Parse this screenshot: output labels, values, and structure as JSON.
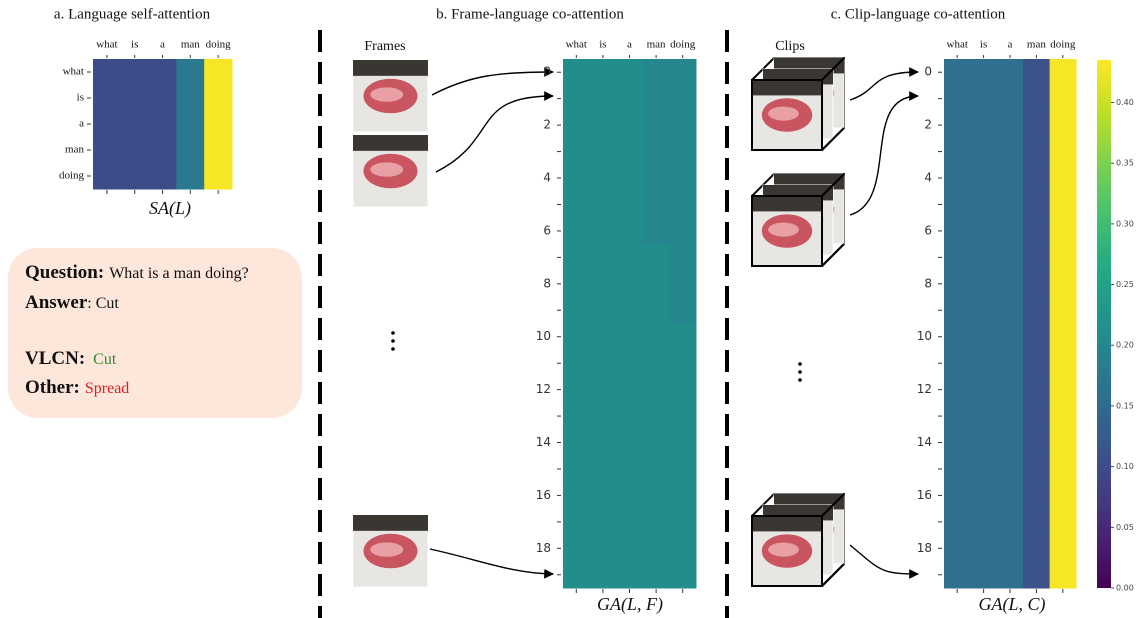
{
  "chart_data": [
    {
      "type": "heatmap",
      "title": "a. Language self-attention",
      "xlabel": "SA(L)",
      "columns": [
        "what",
        "is",
        "a",
        "man",
        "doing"
      ],
      "rows": [
        "what",
        "is",
        "a",
        "man",
        "doing"
      ],
      "values": [
        [
          0.1,
          0.1,
          0.1,
          0.175,
          0.43
        ],
        [
          0.1,
          0.1,
          0.1,
          0.175,
          0.43
        ],
        [
          0.1,
          0.1,
          0.1,
          0.175,
          0.43
        ],
        [
          0.1,
          0.1,
          0.1,
          0.175,
          0.43
        ],
        [
          0.1,
          0.1,
          0.1,
          0.175,
          0.43
        ]
      ]
    },
    {
      "type": "heatmap",
      "title": "b. Frame-language co-attention",
      "xlabel": "GA(L, F)",
      "columns": [
        "what",
        "is",
        "a",
        "man",
        "doing"
      ],
      "rows": [
        "0",
        null,
        "2",
        null,
        "4",
        null,
        "6",
        null,
        "8",
        null,
        "10",
        null,
        "12",
        null,
        "14",
        null,
        "16",
        null,
        "18",
        null
      ],
      "values": [
        [
          0.21,
          0.21,
          0.21,
          0.2,
          0.2
        ],
        [
          0.21,
          0.21,
          0.21,
          0.2,
          0.2
        ],
        [
          0.21,
          0.21,
          0.21,
          0.2,
          0.2
        ],
        [
          0.21,
          0.21,
          0.21,
          0.2,
          0.2
        ],
        [
          0.21,
          0.21,
          0.21,
          0.2,
          0.2
        ],
        [
          0.21,
          0.21,
          0.21,
          0.2,
          0.2
        ],
        [
          0.21,
          0.21,
          0.21,
          0.2,
          0.2
        ],
        [
          0.21,
          0.21,
          0.21,
          0.21,
          0.2
        ],
        [
          0.21,
          0.21,
          0.21,
          0.21,
          0.2
        ],
        [
          0.21,
          0.21,
          0.21,
          0.21,
          0.2
        ],
        [
          0.21,
          0.21,
          0.21,
          0.21,
          0.21
        ],
        [
          0.21,
          0.21,
          0.21,
          0.21,
          0.21
        ],
        [
          0.21,
          0.21,
          0.21,
          0.21,
          0.21
        ],
        [
          0.21,
          0.21,
          0.21,
          0.21,
          0.21
        ],
        [
          0.21,
          0.21,
          0.21,
          0.21,
          0.21
        ],
        [
          0.21,
          0.21,
          0.21,
          0.21,
          0.21
        ],
        [
          0.21,
          0.21,
          0.21,
          0.21,
          0.21
        ],
        [
          0.21,
          0.21,
          0.21,
          0.21,
          0.21
        ],
        [
          0.21,
          0.21,
          0.21,
          0.21,
          0.21
        ],
        [
          0.21,
          0.21,
          0.21,
          0.21,
          0.21
        ]
      ]
    },
    {
      "type": "heatmap",
      "title": "c. Clip-language co-attention",
      "xlabel": "GA(L, C)",
      "columns": [
        "what",
        "is",
        "a",
        "man",
        "doing"
      ],
      "rows": [
        "0",
        null,
        "2",
        null,
        "4",
        null,
        "6",
        null,
        "8",
        null,
        "10",
        null,
        "12",
        null,
        "14",
        null,
        "16",
        null,
        "18",
        null
      ],
      "values": [
        [
          0.16,
          0.16,
          0.16,
          0.11,
          0.43
        ],
        [
          0.16,
          0.16,
          0.16,
          0.11,
          0.43
        ],
        [
          0.16,
          0.16,
          0.16,
          0.11,
          0.43
        ],
        [
          0.16,
          0.16,
          0.16,
          0.11,
          0.43
        ],
        [
          0.16,
          0.16,
          0.16,
          0.11,
          0.43
        ],
        [
          0.16,
          0.16,
          0.16,
          0.11,
          0.43
        ],
        [
          0.16,
          0.16,
          0.16,
          0.11,
          0.43
        ],
        [
          0.16,
          0.16,
          0.16,
          0.11,
          0.43
        ],
        [
          0.16,
          0.16,
          0.16,
          0.11,
          0.43
        ],
        [
          0.16,
          0.16,
          0.16,
          0.11,
          0.43
        ],
        [
          0.16,
          0.16,
          0.16,
          0.11,
          0.43
        ],
        [
          0.16,
          0.16,
          0.16,
          0.11,
          0.43
        ],
        [
          0.16,
          0.16,
          0.16,
          0.11,
          0.43
        ],
        [
          0.16,
          0.16,
          0.16,
          0.11,
          0.43
        ],
        [
          0.16,
          0.16,
          0.16,
          0.11,
          0.43
        ],
        [
          0.16,
          0.16,
          0.16,
          0.11,
          0.43
        ],
        [
          0.16,
          0.16,
          0.16,
          0.11,
          0.43
        ],
        [
          0.16,
          0.16,
          0.16,
          0.11,
          0.43
        ],
        [
          0.16,
          0.16,
          0.16,
          0.11,
          0.43
        ],
        [
          0.16,
          0.16,
          0.16,
          0.11,
          0.43
        ]
      ],
      "colorbar": {
        "lim": [
          0,
          0.435
        ],
        "colormap": "viridis",
        "ticks": [
          {
            "value": 0,
            "label": "0.00"
          },
          {
            "value": 0.05,
            "label": "0.05"
          },
          {
            "value": 0.1,
            "label": "0.10"
          },
          {
            "value": 0.15,
            "label": "0.15"
          },
          {
            "value": 0.2,
            "label": "0.20"
          },
          {
            "value": 0.25,
            "label": "0.25"
          },
          {
            "value": 0.3,
            "label": "0.30"
          },
          {
            "value": 0.35,
            "label": "0.35"
          },
          {
            "value": 0.4,
            "label": "0.40"
          }
        ]
      }
    }
  ],
  "frames_label": "Frames",
  "clips_label": "Clips",
  "qa": {
    "question_label": "Question:",
    "question": "What is a man doing?",
    "answer_label": "Answer",
    "answer": ": Cut",
    "vlcn_label": "VLCN:",
    "vlcn": "Cut",
    "other_label": "Other:",
    "other": "Spread"
  }
}
